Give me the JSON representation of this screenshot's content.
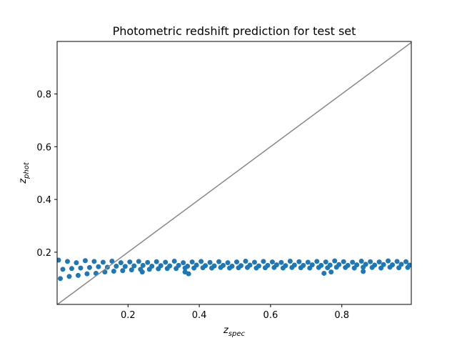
{
  "chart_data": {
    "type": "scatter",
    "title": "Photometric redshift prediction for test set",
    "xlabel": [
      "z",
      "spec"
    ],
    "ylabel": [
      "z",
      "phot"
    ],
    "xlim": [
      0.001,
      0.995
    ],
    "ylim": [
      0.002,
      0.999
    ],
    "xticks": [
      0.2,
      0.4,
      0.6,
      0.8
    ],
    "yticks": [
      0.2,
      0.4,
      0.6,
      0.8
    ],
    "series": [
      {
        "type": "scatter",
        "color": "#1f77b4",
        "x": [
          0.005,
          0.03,
          0.055,
          0.08,
          0.105,
          0.13,
          0.155,
          0.18,
          0.205,
          0.23,
          0.255,
          0.28,
          0.305,
          0.33,
          0.355,
          0.38,
          0.405,
          0.43,
          0.455,
          0.48,
          0.505,
          0.53,
          0.555,
          0.58,
          0.605,
          0.63,
          0.655,
          0.68,
          0.705,
          0.73,
          0.755,
          0.78,
          0.805,
          0.83,
          0.855,
          0.88,
          0.905,
          0.93,
          0.955,
          0.98,
          0.017,
          0.042,
          0.067,
          0.092,
          0.117,
          0.142,
          0.167,
          0.192,
          0.217,
          0.242,
          0.267,
          0.292,
          0.317,
          0.342,
          0.367,
          0.392,
          0.417,
          0.442,
          0.467,
          0.492,
          0.517,
          0.542,
          0.567,
          0.592,
          0.617,
          0.642,
          0.667,
          0.692,
          0.717,
          0.742,
          0.767,
          0.792,
          0.817,
          0.842,
          0.867,
          0.892,
          0.917,
          0.942,
          0.967,
          0.99,
          0.01,
          0.035,
          0.06,
          0.085,
          0.11,
          0.135,
          0.16,
          0.185,
          0.21,
          0.235,
          0.26,
          0.285,
          0.31,
          0.335,
          0.36,
          0.385,
          0.41,
          0.435,
          0.46,
          0.485,
          0.51,
          0.535,
          0.56,
          0.585,
          0.61,
          0.635,
          0.66,
          0.685,
          0.71,
          0.735,
          0.76,
          0.785,
          0.81,
          0.835,
          0.86,
          0.885,
          0.91,
          0.935,
          0.96,
          0.985,
          0.37,
          0.36,
          0.75,
          0.77,
          0.86,
          0.24
        ],
        "values": [
          0.17,
          0.165,
          0.16,
          0.168,
          0.165,
          0.162,
          0.166,
          0.16,
          0.163,
          0.165,
          0.161,
          0.164,
          0.162,
          0.166,
          0.16,
          0.163,
          0.165,
          0.161,
          0.164,
          0.16,
          0.163,
          0.166,
          0.162,
          0.165,
          0.163,
          0.161,
          0.166,
          0.164,
          0.162,
          0.165,
          0.163,
          0.167,
          0.164,
          0.162,
          0.166,
          0.164,
          0.163,
          0.167,
          0.165,
          0.164,
          0.135,
          0.138,
          0.14,
          0.142,
          0.145,
          0.143,
          0.147,
          0.146,
          0.148,
          0.15,
          0.147,
          0.149,
          0.148,
          0.15,
          0.147,
          0.151,
          0.149,
          0.148,
          0.15,
          0.147,
          0.149,
          0.151,
          0.148,
          0.15,
          0.152,
          0.149,
          0.151,
          0.15,
          0.152,
          0.15,
          0.151,
          0.153,
          0.15,
          0.152,
          0.154,
          0.151,
          0.153,
          0.152,
          0.154,
          0.151,
          0.1,
          0.108,
          0.112,
          0.118,
          0.12,
          0.125,
          0.128,
          0.13,
          0.133,
          0.135,
          0.135,
          0.137,
          0.138,
          0.138,
          0.14,
          0.14,
          0.141,
          0.14,
          0.142,
          0.14,
          0.141,
          0.142,
          0.14,
          0.141,
          0.142,
          0.14,
          0.142,
          0.141,
          0.14,
          0.142,
          0.141,
          0.143,
          0.142,
          0.14,
          0.143,
          0.142,
          0.14,
          0.143,
          0.141,
          0.142,
          0.118,
          0.125,
          0.12,
          0.125,
          0.127,
          0.125
        ]
      },
      {
        "type": "line",
        "color": "#888888",
        "x": [
          0,
          1
        ],
        "values": [
          0,
          1
        ]
      }
    ]
  }
}
